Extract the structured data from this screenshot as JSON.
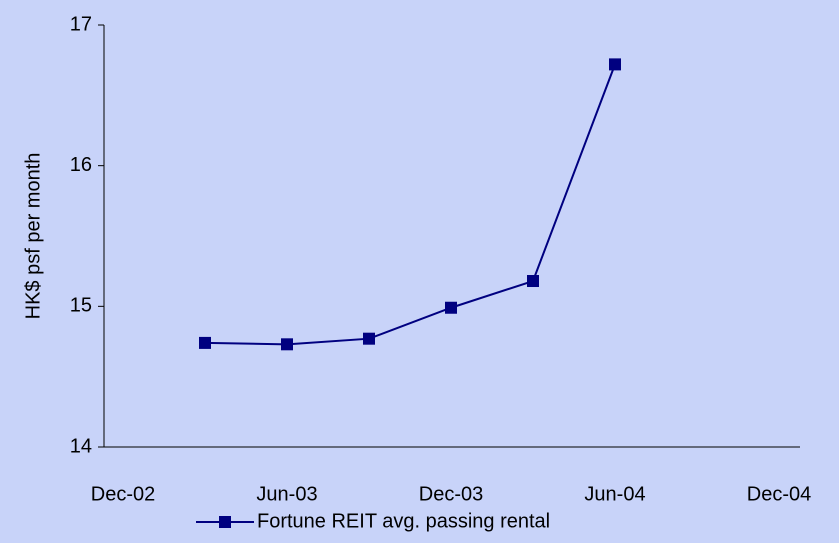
{
  "chart_data": {
    "type": "line",
    "y_label": "HK$ psf per month",
    "categories": [
      "Dec-02",
      null,
      "Jun-03",
      null,
      "Dec-03",
      null,
      "Jun-04",
      null,
      "Dec-04"
    ],
    "series": [
      {
        "name": "Fortune REIT avg. passing rental",
        "color": "#000080",
        "values": [
          null,
          14.74,
          14.73,
          14.77,
          14.99,
          15.18,
          16.72,
          null,
          null
        ]
      }
    ],
    "ylim": [
      14,
      17
    ],
    "yticks": [
      14,
      15,
      16,
      17
    ],
    "grid": false,
    "legend": "bottom"
  }
}
